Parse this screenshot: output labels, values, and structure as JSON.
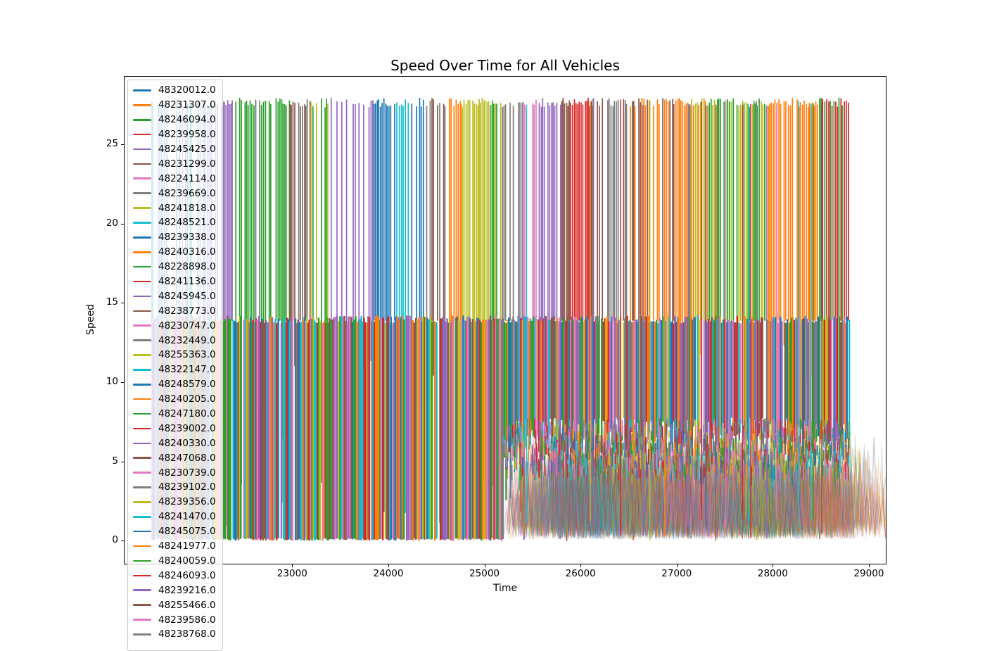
{
  "title": "Speed Over Time for All Vehicles",
  "axes": {
    "xlabel": "Time",
    "ylabel": "Speed",
    "x_ticks": [
      23000,
      24000,
      25000,
      26000,
      27000,
      28000,
      29000
    ],
    "y_ticks": [
      0,
      5,
      10,
      15,
      20,
      25
    ]
  },
  "legend": {
    "position": "upper left",
    "entries": [
      {
        "label": "48320012.0",
        "color": "#1f77b4"
      },
      {
        "label": "48231307.0",
        "color": "#ff7f0e"
      },
      {
        "label": "48246094.0",
        "color": "#2ca02c"
      },
      {
        "label": "48239958.0",
        "color": "#d62728"
      },
      {
        "label": "48245425.0",
        "color": "#9467bd"
      },
      {
        "label": "48231299.0",
        "color": "#8c564b"
      },
      {
        "label": "48224114.0",
        "color": "#e377c2"
      },
      {
        "label": "48239669.0",
        "color": "#7f7f7f"
      },
      {
        "label": "48241818.0",
        "color": "#bcbd22"
      },
      {
        "label": "48248521.0",
        "color": "#17becf"
      },
      {
        "label": "48239338.0",
        "color": "#1f77b4"
      },
      {
        "label": "48240316.0",
        "color": "#ff7f0e"
      },
      {
        "label": "48228898.0",
        "color": "#2ca02c"
      },
      {
        "label": "48241136.0",
        "color": "#d62728"
      },
      {
        "label": "48245945.0",
        "color": "#9467bd"
      },
      {
        "label": "48238773.0",
        "color": "#8c564b"
      },
      {
        "label": "48230747.0",
        "color": "#e377c2"
      },
      {
        "label": "48232449.0",
        "color": "#7f7f7f"
      },
      {
        "label": "48255363.0",
        "color": "#bcbd22"
      },
      {
        "label": "48322147.0",
        "color": "#17becf"
      },
      {
        "label": "48248579.0",
        "color": "#1f77b4"
      },
      {
        "label": "48240205.0",
        "color": "#ff7f0e"
      },
      {
        "label": "48247180.0",
        "color": "#2ca02c"
      },
      {
        "label": "48239002.0",
        "color": "#d62728"
      },
      {
        "label": "48240330.0",
        "color": "#9467bd"
      },
      {
        "label": "48247068.0",
        "color": "#8c564b"
      },
      {
        "label": "48230739.0",
        "color": "#e377c2"
      },
      {
        "label": "48239102.0",
        "color": "#7f7f7f"
      },
      {
        "label": "48239356.0",
        "color": "#bcbd22"
      },
      {
        "label": "48241470.0",
        "color": "#17becf"
      },
      {
        "label": "48245075.0",
        "color": "#1f77b4"
      },
      {
        "label": "48241977.0",
        "color": "#ff7f0e"
      },
      {
        "label": "48240059.0",
        "color": "#2ca02c"
      },
      {
        "label": "48246093.0",
        "color": "#d62728"
      },
      {
        "label": "48239216.0",
        "color": "#9467bd"
      },
      {
        "label": "48255466.0",
        "color": "#8c564b"
      },
      {
        "label": "48239586.0",
        "color": "#e377c2"
      },
      {
        "label": "48238768.0",
        "color": "#7f7f7f"
      }
    ]
  },
  "chart_data": {
    "type": "line",
    "title": "Speed Over Time for All Vehicles",
    "xlabel": "Time",
    "ylabel": "Speed",
    "xlim": [
      21255,
      29176
    ],
    "ylim": [
      -1.45,
      29.25
    ],
    "x_ticks": [
      23000,
      24000,
      25000,
      26000,
      27000,
      28000,
      29000
    ],
    "y_ticks": [
      0,
      5,
      10,
      15,
      20,
      25
    ],
    "grid": false,
    "legend_position": "upper left",
    "palette": [
      "#1f77b4",
      "#ff7f0e",
      "#2ca02c",
      "#d62728",
      "#9467bd",
      "#8c564b",
      "#e377c2",
      "#7f7f7f",
      "#bcbd22",
      "#17becf"
    ],
    "series_names": [
      "48320012.0",
      "48231307.0",
      "48246094.0",
      "48239958.0",
      "48245425.0",
      "48231299.0",
      "48224114.0",
      "48239669.0",
      "48241818.0",
      "48248521.0",
      "48239338.0",
      "48240316.0",
      "48228898.0",
      "48241136.0",
      "48245945.0",
      "48238773.0",
      "48230747.0",
      "48232449.0",
      "48255363.0",
      "48322147.0",
      "48248579.0",
      "48240205.0",
      "48247180.0",
      "48239002.0",
      "48240330.0",
      "48247068.0",
      "48230739.0",
      "48239102.0",
      "48239356.0",
      "48241470.0",
      "48245075.0",
      "48241977.0",
      "48240059.0",
      "48246093.0",
      "48239216.0",
      "48255466.0",
      "48239586.0",
      "48238768.0"
    ],
    "pattern": {
      "x_data_range": [
        21540,
        28797
      ],
      "upper_top": 27.6,
      "lower_top": 13.95,
      "legend_shadow_t1": 22280,
      "upper_step": 17.5,
      "lower_t0": 21540,
      "lower_t1": 28797,
      "lower_step": 14.6,
      "tangle_t0": 25200,
      "right_bottom": [
        5.0,
        7.8
      ],
      "tangle_lines": 360,
      "tangle_peak": [
        3.0,
        7.2
      ],
      "speckles": 1150,
      "speckle_v": [
        4.6,
        7.7
      ],
      "crossers": 26,
      "upper_clusters": [
        {
          "t0": 21540,
          "t1": 22280,
          "color": "#1f77b4",
          "mix": [
            "#17becf",
            "#9467bd"
          ],
          "density": 0.55
        },
        {
          "t0": 22280,
          "t1": 22393,
          "color": "#9467bd",
          "density": 0.85
        },
        {
          "t0": 22393,
          "t1": 22620,
          "color": "#2ca02c",
          "density": 0.85
        },
        {
          "t0": 22620,
          "t1": 22680,
          "color": "#7f7f7f",
          "density": 0.8
        },
        {
          "t0": 22680,
          "t1": 22977,
          "color": "#2ca02c",
          "density": 0.85
        },
        {
          "t0": 22977,
          "t1": 23195,
          "color": "#8c564b",
          "mix": [
            "#7f7f7f"
          ],
          "density": 0.8
        },
        {
          "t0": 23195,
          "t1": 23385,
          "color": "#bcbd22",
          "mix": [
            "#2ca02c"
          ],
          "density": 0.8
        },
        {
          "t0": 23385,
          "t1": 23852,
          "color": "#9467bd",
          "density": 0.5
        },
        {
          "t0": 23852,
          "t1": 24071,
          "color": "#1f77b4",
          "density": 0.8
        },
        {
          "t0": 24071,
          "t1": 24217,
          "color": "#17becf",
          "density": 0.85
        },
        {
          "t0": 24217,
          "t1": 24399,
          "color": "#1f77b4",
          "mix": [
            "#7f7f7f"
          ],
          "density": 0.7
        },
        {
          "t0": 24399,
          "t1": 24618,
          "color": "#8c564b",
          "mix": [
            "#7f7f7f"
          ],
          "density": 0.75
        },
        {
          "t0": 24618,
          "t1": 24771,
          "color": "#ff7f0e",
          "density": 0.8
        },
        {
          "t0": 24771,
          "t1": 25004,
          "color": "#bcbd22",
          "density": 0.8
        },
        {
          "t0": 25004,
          "t1": 25187,
          "color": "#2ca02c",
          "mix": [
            "#bcbd22"
          ],
          "density": 0.8
        },
        {
          "t0": 25187,
          "t1": 25405,
          "color": "#7f7f7f",
          "density": 0.55
        },
        {
          "t0": 25405,
          "t1": 25551,
          "color": "#e377c2",
          "density": 0.7
        },
        {
          "t0": 25551,
          "t1": 25806,
          "color": "#9467bd",
          "density": 0.8
        },
        {
          "t0": 25806,
          "t1": 25894,
          "color": "#8c564b",
          "density": 0.75
        },
        {
          "t0": 25894,
          "t1": 26135,
          "color": "#d62728",
          "density": 0.85
        },
        {
          "t0": 26135,
          "t1": 26499,
          "color": "#7f7f7f",
          "mix": [
            "#8c564b"
          ],
          "density": 0.75
        },
        {
          "t0": 26499,
          "t1": 27156,
          "color": "#ff7f0e",
          "mix": [
            "#8c564b"
          ],
          "density": 0.8
        },
        {
          "t0": 27156,
          "t1": 27340,
          "color": "#bcbd22",
          "mix": [
            "#ff7f0e"
          ],
          "density": 0.8
        },
        {
          "t0": 27340,
          "t1": 27922,
          "color": "#2ca02c",
          "mix": [
            "#bcbd22"
          ],
          "density": 0.85
        },
        {
          "t0": 27922,
          "t1": 28469,
          "color": "#ff7f0e",
          "density": 0.9
        },
        {
          "t0": 28469,
          "t1": 28797,
          "color": "#d62728",
          "mix": [
            "#2ca02c"
          ],
          "density": 0.85
        }
      ]
    }
  }
}
